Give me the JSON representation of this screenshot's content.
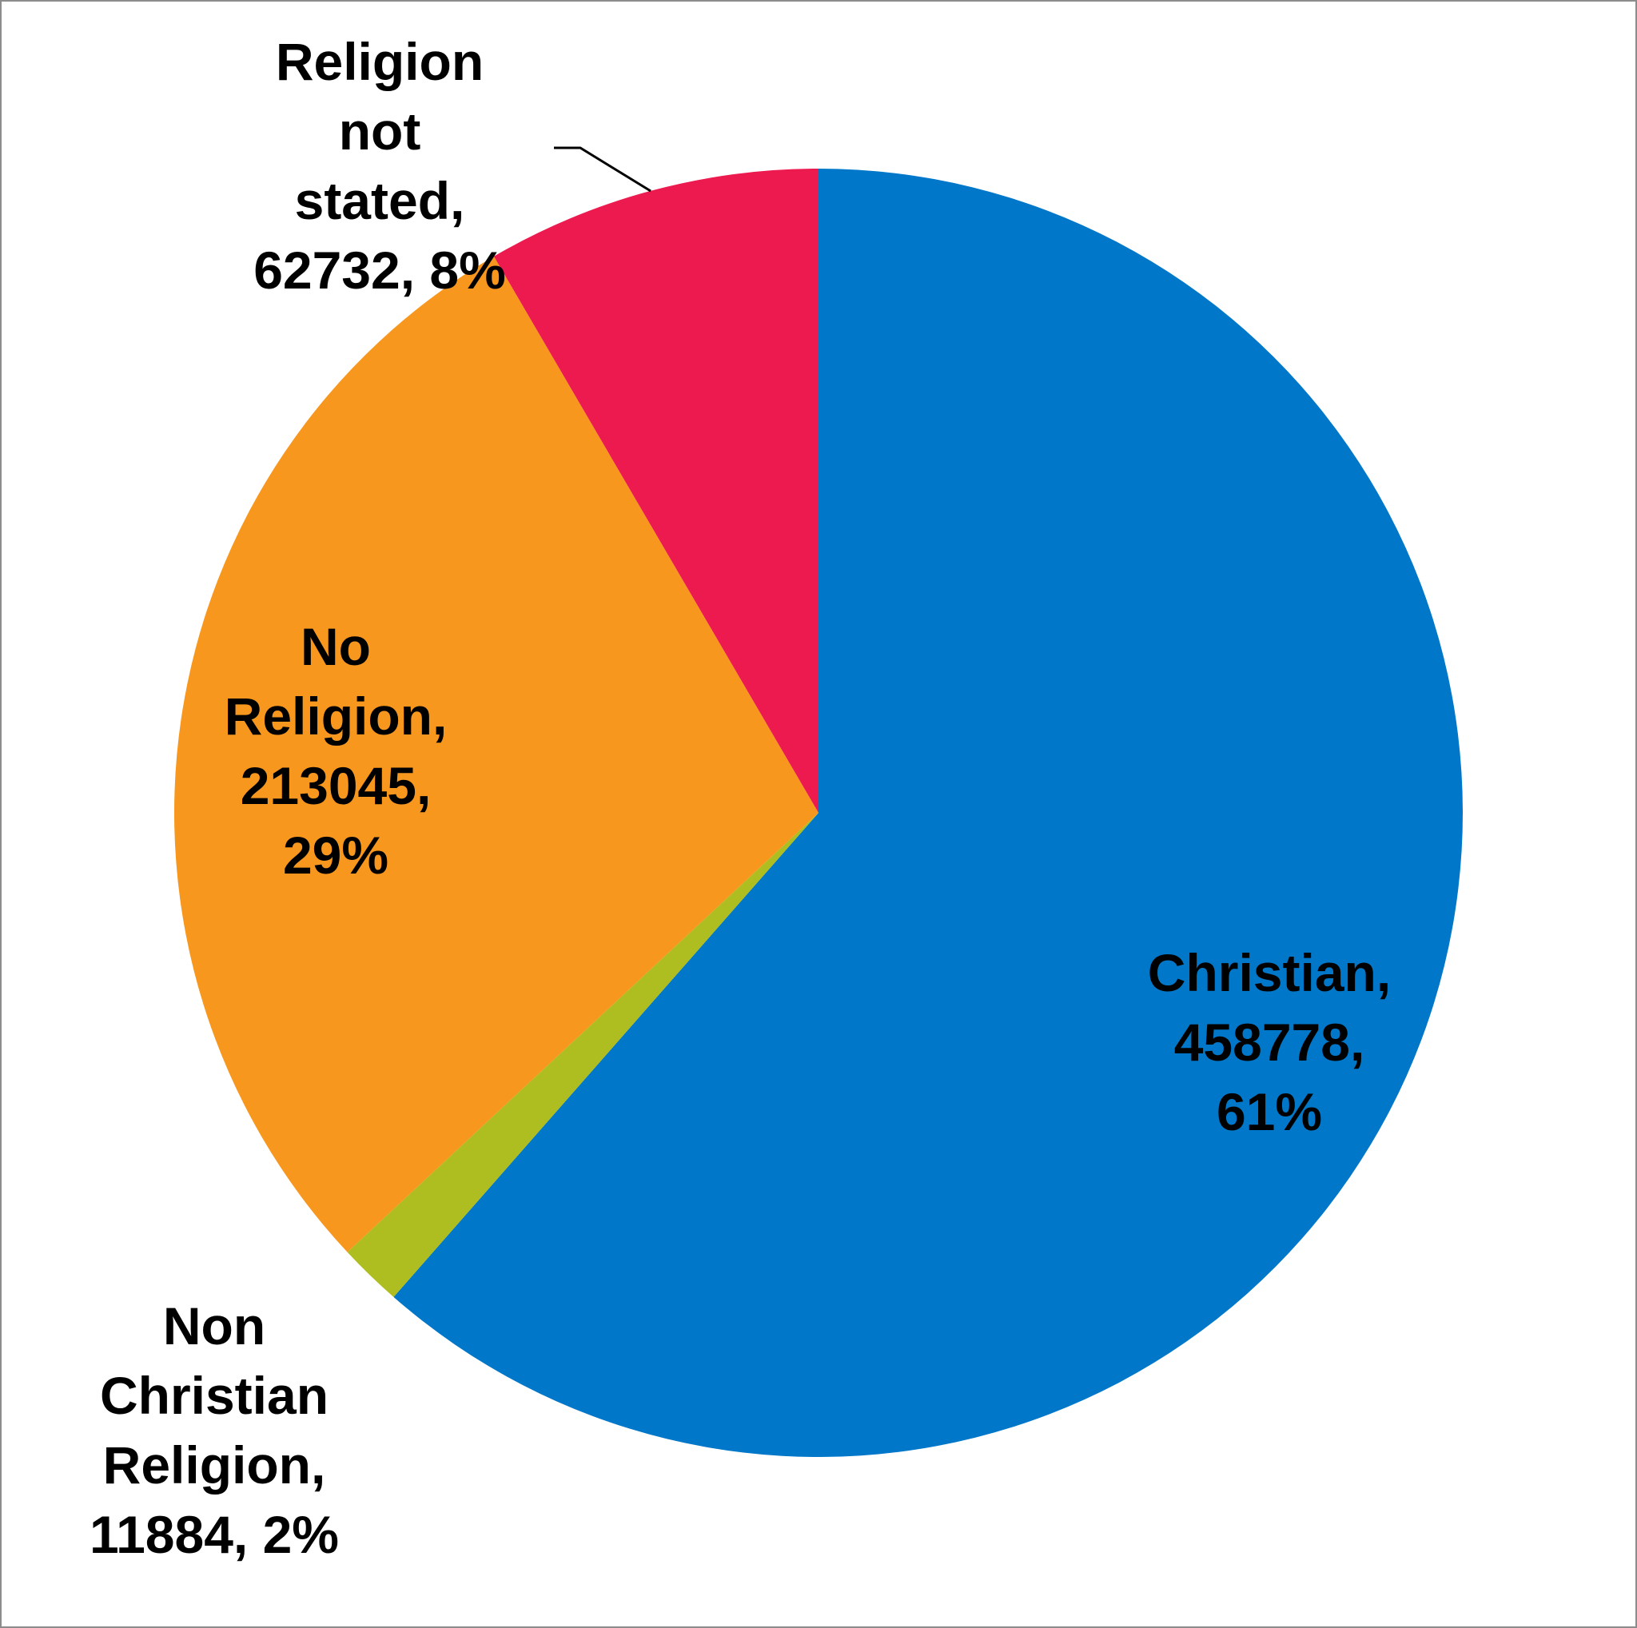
{
  "chart_data": {
    "type": "pie",
    "title": "",
    "start_angle_deg": 0,
    "direction": "clockwise",
    "slices": [
      {
        "name": "Christian",
        "value": 458778,
        "percent_label": "61%",
        "color": "#0077C8",
        "label_lines": [
          "Christian,",
          "458778,",
          "61%"
        ]
      },
      {
        "name": "Non Christian Religion",
        "value": 11884,
        "percent_label": "2%",
        "color": "#AEBD20",
        "label_lines": [
          "Non",
          "Christian",
          "Religion,",
          "11884, 2%"
        ]
      },
      {
        "name": "No Religion",
        "value": 213045,
        "percent_label": "29%",
        "color": "#F7971E",
        "label_lines": [
          "No",
          "Religion,",
          "213045,",
          "29%"
        ]
      },
      {
        "name": "Religion not stated",
        "value": 62732,
        "percent_label": "8%",
        "color": "#EC1A4F",
        "label_lines": [
          "Religion",
          "not",
          "stated,",
          "62732, 8%"
        ]
      }
    ],
    "legend": "none",
    "leader_lines": [
      "Religion not stated"
    ]
  }
}
